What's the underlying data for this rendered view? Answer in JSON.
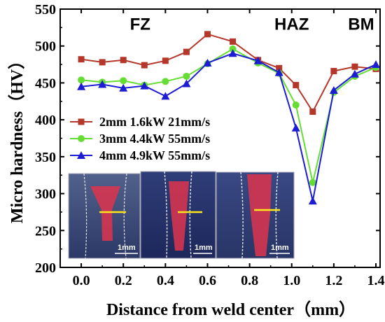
{
  "chart_data": {
    "type": "line",
    "title": "",
    "xlabel": "Distance from weld center（mm）",
    "ylabel": "Micro hardness（HV）",
    "xlim": [
      -0.1,
      1.42
    ],
    "ylim": [
      200,
      550
    ],
    "xticks": [
      "0.0",
      "0.2",
      "0.4",
      "0.6",
      "0.8",
      "1.0",
      "1.2",
      "1.4"
    ],
    "yticks": [
      "200",
      "250",
      "300",
      "350",
      "400",
      "450",
      "500",
      "550"
    ],
    "grid": false,
    "legend_position": "center-left",
    "region_labels": [
      {
        "text": "FZ",
        "x": 0.28,
        "y": 522
      },
      {
        "text": "HAZ",
        "x": 1.0,
        "y": 522
      },
      {
        "text": "BM",
        "x": 1.33,
        "y": 522
      }
    ],
    "series": [
      {
        "name": "2mm 1.6kW 21mm/s",
        "color": "#b5372a",
        "marker": "square",
        "x": [
          0.0,
          0.1,
          0.2,
          0.3,
          0.4,
          0.5,
          0.6,
          0.72,
          0.84,
          0.94,
          1.02,
          1.1,
          1.2,
          1.3,
          1.4
        ],
        "y": [
          482,
          478,
          481,
          474,
          480,
          492,
          516,
          506,
          481,
          470,
          447,
          411,
          466,
          472,
          469
        ]
      },
      {
        "name": "3mm 4.4kW 55mm/s",
        "color": "#66dd33",
        "marker": "circle",
        "x": [
          0.0,
          0.1,
          0.2,
          0.3,
          0.4,
          0.5,
          0.6,
          0.72,
          0.84,
          0.94,
          1.02,
          1.1,
          1.2,
          1.3,
          1.4
        ],
        "y": [
          454,
          451,
          453,
          447,
          452,
          459,
          476,
          496,
          477,
          463,
          420,
          315,
          437,
          459,
          471
        ]
      },
      {
        "name": "4mm 4.9kW 55mm/s",
        "color": "#1c1cd4",
        "marker": "triangle",
        "x": [
          0.0,
          0.1,
          0.2,
          0.3,
          0.4,
          0.5,
          0.6,
          0.72,
          0.84,
          0.94,
          1.02,
          1.1,
          1.2,
          1.3,
          1.4
        ],
        "y": [
          445,
          448,
          443,
          446,
          432,
          449,
          477,
          490,
          480,
          464,
          389,
          290,
          440,
          462,
          475
        ]
      }
    ],
    "inset": {
      "panels": [
        {
          "scale_label": "1mm"
        },
        {
          "scale_label": "1mm"
        },
        {
          "scale_label": "1mm"
        }
      ]
    }
  }
}
